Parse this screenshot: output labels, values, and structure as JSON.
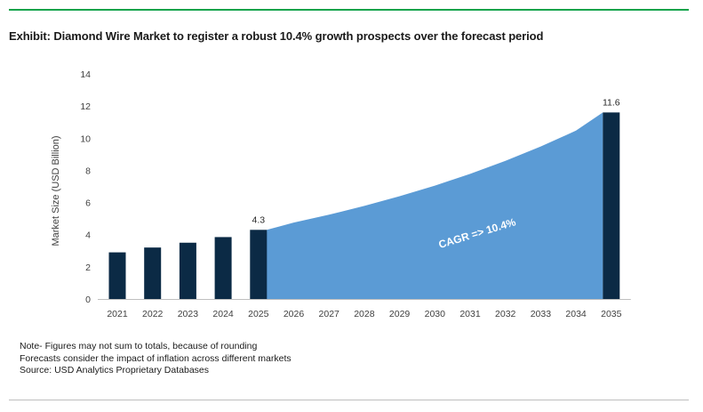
{
  "title": "Exhibit: Diamond Wire Market to register a robust 10.4% growth prospects over the forecast period",
  "notes": [
    "Note- Figures may not sum to totals, because of rounding",
    "Forecasts consider the impact of inflation across different markets",
    "Source: USD Analytics Proprietary Databases"
  ],
  "colors": {
    "bar": "#0b2a45",
    "area": "#5b9bd5",
    "rule": "#0fa34a"
  },
  "chart_data": {
    "type": "bar",
    "categories": [
      "2021",
      "2022",
      "2023",
      "2024",
      "2025",
      "2026",
      "2027",
      "2028",
      "2029",
      "2030",
      "2031",
      "2032",
      "2033",
      "2034",
      "2035"
    ],
    "values": [
      2.9,
      3.2,
      3.5,
      3.85,
      4.3,
      null,
      null,
      null,
      null,
      null,
      null,
      null,
      null,
      null,
      11.6
    ],
    "bar_labels": {
      "2025": "4.3",
      "2035": "11.6"
    },
    "area_series": {
      "x": [
        "2025",
        "2026",
        "2027",
        "2028",
        "2029",
        "2030",
        "2031",
        "2032",
        "2033",
        "2034",
        "2035"
      ],
      "values": [
        4.3,
        4.75,
        5.24,
        5.79,
        6.39,
        7.05,
        7.78,
        8.59,
        9.48,
        10.47,
        11.6
      ]
    },
    "annotation": "CAGR => 10.4%",
    "ylabel": "Market Size (USD Billion)",
    "xlabel": "",
    "ylim": [
      0,
      14
    ],
    "yticks": [
      0,
      2,
      4,
      6,
      8,
      10,
      12,
      14
    ],
    "grid": false
  }
}
